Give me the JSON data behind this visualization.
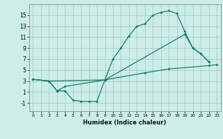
{
  "bg_color": "#cceee8",
  "grid_color": "#aacccc",
  "line_color": "#1a7a6a",
  "xlabel": "Humidex (Indice chaleur)",
  "xlim": [
    -0.5,
    23.5
  ],
  "ylim": [
    -2.5,
    17
  ],
  "yticks": [
    -1,
    1,
    3,
    5,
    7,
    9,
    11,
    13,
    15
  ],
  "xticks": [
    0,
    1,
    2,
    3,
    4,
    5,
    6,
    7,
    8,
    9,
    10,
    11,
    12,
    13,
    14,
    15,
    16,
    17,
    18,
    19,
    20,
    21,
    22,
    23
  ],
  "line1_x": [
    0,
    2,
    3,
    4,
    5,
    6,
    7,
    8,
    9,
    10,
    11,
    12,
    13,
    14,
    15,
    16,
    17,
    18,
    19,
    20,
    21,
    22
  ],
  "line1_y": [
    3.3,
    3.0,
    1.2,
    1.2,
    -0.5,
    -0.7,
    -0.7,
    -0.7,
    3.2,
    7.0,
    9.0,
    11.2,
    13.0,
    13.4,
    15.0,
    15.5,
    15.8,
    15.3,
    12.0,
    9.0,
    8.0,
    6.5
  ],
  "line2_x": [
    0,
    2,
    3,
    4,
    9,
    19,
    20,
    21,
    22
  ],
  "line2_y": [
    3.3,
    3.0,
    1.2,
    2.0,
    3.2,
    11.5,
    9.0,
    8.0,
    6.5
  ],
  "line3_x": [
    0,
    2,
    9,
    14,
    17,
    22,
    23
  ],
  "line3_y": [
    3.3,
    3.0,
    3.2,
    4.5,
    5.2,
    5.8,
    6.0
  ]
}
